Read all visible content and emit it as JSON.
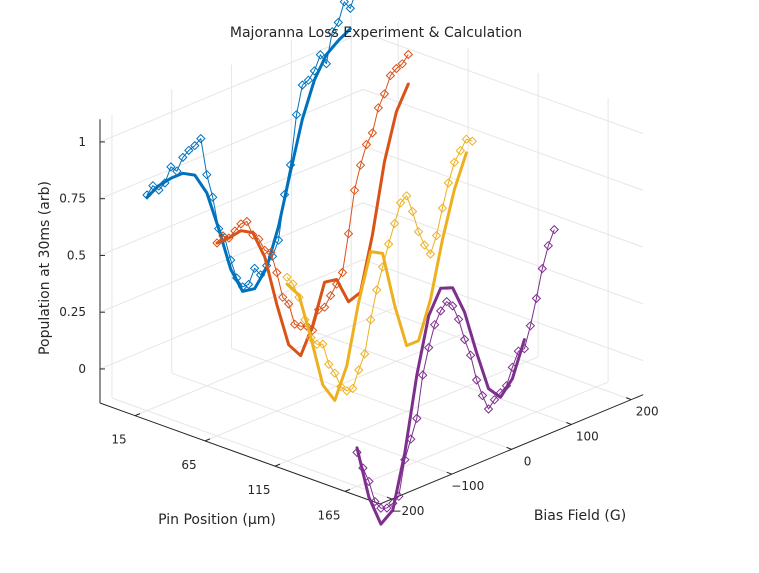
{
  "chart_data": {
    "type": "line",
    "title": "Majoranna Loss Experiment & Calculation",
    "zlabel": "Population at 30ms (arb)",
    "xlabel": "Pin Position (μm)",
    "ylabel": "Bias Field (G)",
    "z_ticks": [
      0,
      0.25,
      0.5,
      0.75,
      1
    ],
    "z_tick_labels": [
      "0",
      "0.25",
      "0.5",
      "0.75",
      "1"
    ],
    "x_ticks": [
      15,
      65,
      115,
      165
    ],
    "x_tick_labels": [
      "15",
      "65",
      "115",
      "165"
    ],
    "y_ticks": [
      -200,
      -100,
      0,
      100,
      200
    ],
    "y_tick_labels": [
      "−200",
      "−100",
      "0",
      "100",
      "200"
    ],
    "xlim": [
      -10,
      190
    ],
    "ylim": [
      -220,
      220
    ],
    "zlim": [
      -0.15,
      1.1
    ],
    "grid": true,
    "series": [
      {
        "pin_position": 15,
        "color": "#0072BD",
        "measured": [
          [
            -200,
            0.8
          ],
          [
            -190,
            0.83
          ],
          [
            -180,
            0.8
          ],
          [
            -170,
            0.82
          ],
          [
            -160,
            0.88
          ],
          [
            -150,
            0.85
          ],
          [
            -140,
            0.9
          ],
          [
            -130,
            0.92
          ],
          [
            -120,
            0.93
          ],
          [
            -110,
            0.95
          ],
          [
            -100,
            0.78
          ],
          [
            -90,
            0.67
          ],
          [
            -80,
            0.52
          ],
          [
            -70,
            0.47
          ],
          [
            -60,
            0.36
          ],
          [
            -50,
            0.27
          ],
          [
            -40,
            0.22
          ],
          [
            -30,
            0.22
          ],
          [
            -20,
            0.28
          ],
          [
            -10,
            0.24
          ],
          [
            0,
            0.27
          ],
          [
            10,
            0.3
          ],
          [
            20,
            0.36
          ],
          [
            30,
            0.55
          ],
          [
            40,
            0.67
          ],
          [
            50,
            0.88
          ],
          [
            60,
            1.0
          ],
          [
            70,
            1.01
          ],
          [
            80,
            1.04
          ],
          [
            90,
            1.1
          ],
          [
            100,
            1.05
          ],
          [
            110,
            1.18
          ],
          [
            120,
            1.21
          ],
          [
            130,
            1.29
          ],
          [
            140,
            1.25
          ],
          [
            150,
            1.32
          ],
          [
            160,
            1.3
          ],
          [
            170,
            1.3
          ]
        ],
        "calculated": [
          [
            -200,
            0.79
          ],
          [
            -180,
            0.82
          ],
          [
            -160,
            0.83
          ],
          [
            -140,
            0.83
          ],
          [
            -120,
            0.8
          ],
          [
            -100,
            0.7
          ],
          [
            -80,
            0.52
          ],
          [
            -60,
            0.32
          ],
          [
            -40,
            0.2
          ],
          [
            -20,
            0.19
          ],
          [
            0,
            0.26
          ],
          [
            20,
            0.42
          ],
          [
            40,
            0.64
          ],
          [
            60,
            0.85
          ],
          [
            80,
            1.0
          ],
          [
            100,
            1.09
          ],
          [
            120,
            1.13
          ],
          [
            140,
            1.16
          ]
        ]
      },
      {
        "pin_position": 65,
        "color": "#D95319",
        "measured": [
          [
            -200,
            0.7
          ],
          [
            -190,
            0.72
          ],
          [
            -180,
            0.7
          ],
          [
            -170,
            0.72
          ],
          [
            -160,
            0.74
          ],
          [
            -150,
            0.74
          ],
          [
            -140,
            0.67
          ],
          [
            -130,
            0.64
          ],
          [
            -120,
            0.58
          ],
          [
            -110,
            0.56
          ],
          [
            -100,
            0.46
          ],
          [
            -90,
            0.34
          ],
          [
            -80,
            0.3
          ],
          [
            -70,
            0.2
          ],
          [
            -60,
            0.18
          ],
          [
            -50,
            0.17
          ],
          [
            -40,
            0.14
          ],
          [
            -30,
            0.22
          ],
          [
            -20,
            0.22
          ],
          [
            -10,
            0.26
          ],
          [
            0,
            0.3
          ],
          [
            10,
            0.34
          ],
          [
            20,
            0.5
          ],
          [
            30,
            0.68
          ],
          [
            40,
            0.78
          ],
          [
            50,
            0.86
          ],
          [
            60,
            0.9
          ],
          [
            70,
            1.0
          ],
          [
            80,
            1.05
          ],
          [
            90,
            1.12
          ],
          [
            100,
            1.14
          ],
          [
            110,
            1.15
          ],
          [
            120,
            1.18
          ]
        ],
        "calculated": [
          [
            -200,
            0.7
          ],
          [
            -180,
            0.7
          ],
          [
            -160,
            0.71
          ],
          [
            -140,
            0.68
          ],
          [
            -120,
            0.55
          ],
          [
            -100,
            0.32
          ],
          [
            -80,
            0.12
          ],
          [
            -60,
            0.05
          ],
          [
            -40,
            0.16
          ],
          [
            -20,
            0.33
          ],
          [
            0,
            0.32
          ],
          [
            20,
            0.2
          ],
          [
            40,
            0.22
          ],
          [
            60,
            0.45
          ],
          [
            80,
            0.75
          ],
          [
            100,
            0.95
          ],
          [
            120,
            1.05
          ]
        ]
      },
      {
        "pin_position": 115,
        "color": "#EDB120",
        "measured": [
          [
            -200,
            0.66
          ],
          [
            -190,
            0.62
          ],
          [
            -180,
            0.55
          ],
          [
            -170,
            0.44
          ],
          [
            -160,
            0.35
          ],
          [
            -150,
            0.31
          ],
          [
            -140,
            0.3
          ],
          [
            -130,
            0.2
          ],
          [
            -120,
            0.15
          ],
          [
            -110,
            0.08
          ],
          [
            -100,
            0.05
          ],
          [
            -90,
            0.05
          ],
          [
            -80,
            0.12
          ],
          [
            -70,
            0.18
          ],
          [
            -60,
            0.32
          ],
          [
            -50,
            0.44
          ],
          [
            -40,
            0.53
          ],
          [
            -30,
            0.62
          ],
          [
            -20,
            0.7
          ],
          [
            -10,
            0.78
          ],
          [
            0,
            0.8
          ],
          [
            10,
            0.72
          ],
          [
            20,
            0.62
          ],
          [
            30,
            0.55
          ],
          [
            40,
            0.5
          ],
          [
            50,
            0.57
          ],
          [
            60,
            0.68
          ],
          [
            70,
            0.78
          ],
          [
            80,
            0.86
          ],
          [
            90,
            0.9
          ],
          [
            100,
            0.94
          ],
          [
            110,
            0.92
          ]
        ],
        "calculated": [
          [
            -200,
            0.63
          ],
          [
            -180,
            0.56
          ],
          [
            -160,
            0.35
          ],
          [
            -140,
            0.12
          ],
          [
            -120,
            0.03
          ],
          [
            -100,
            0.16
          ],
          [
            -80,
            0.42
          ],
          [
            -60,
            0.62
          ],
          [
            -40,
            0.59
          ],
          [
            -20,
            0.34
          ],
          [
            0,
            0.14
          ],
          [
            20,
            0.14
          ],
          [
            40,
            0.3
          ],
          [
            60,
            0.54
          ],
          [
            80,
            0.74
          ],
          [
            100,
            0.88
          ]
        ]
      },
      {
        "pin_position": 165,
        "color": "#7E2F8E",
        "measured": [
          [
            -200,
            0.0
          ],
          [
            -190,
            -0.08
          ],
          [
            -180,
            -0.15
          ],
          [
            -170,
            -0.25
          ],
          [
            -160,
            -0.29
          ],
          [
            -150,
            -0.3
          ],
          [
            -140,
            -0.29
          ],
          [
            -130,
            -0.27
          ],
          [
            -120,
            -0.12
          ],
          [
            -110,
            -0.04
          ],
          [
            -100,
            0.04
          ],
          [
            -90,
            0.22
          ],
          [
            -80,
            0.33
          ],
          [
            -70,
            0.42
          ],
          [
            -60,
            0.47
          ],
          [
            -50,
            0.5
          ],
          [
            -40,
            0.47
          ],
          [
            -30,
            0.4
          ],
          [
            -20,
            0.3
          ],
          [
            -10,
            0.22
          ],
          [
            0,
            0.1
          ],
          [
            10,
            0.02
          ],
          [
            20,
            -0.05
          ],
          [
            30,
            -0.02
          ],
          [
            40,
            0.0
          ],
          [
            50,
            0.02
          ],
          [
            60,
            0.09
          ],
          [
            70,
            0.15
          ],
          [
            80,
            0.15
          ],
          [
            90,
            0.24
          ],
          [
            100,
            0.35
          ],
          [
            110,
            0.47
          ],
          [
            120,
            0.56
          ],
          [
            130,
            0.62
          ]
        ],
        "calculated": [
          [
            -200,
            0.02
          ],
          [
            -180,
            -0.22
          ],
          [
            -160,
            -0.36
          ],
          [
            -140,
            -0.32
          ],
          [
            -120,
            -0.09
          ],
          [
            -100,
            0.23
          ],
          [
            -80,
            0.47
          ],
          [
            -60,
            0.57
          ],
          [
            -40,
            0.55
          ],
          [
            -20,
            0.42
          ],
          [
            0,
            0.22
          ],
          [
            20,
            0.04
          ],
          [
            40,
            -0.02
          ],
          [
            60,
            0.04
          ],
          [
            80,
            0.19
          ]
        ]
      }
    ]
  }
}
